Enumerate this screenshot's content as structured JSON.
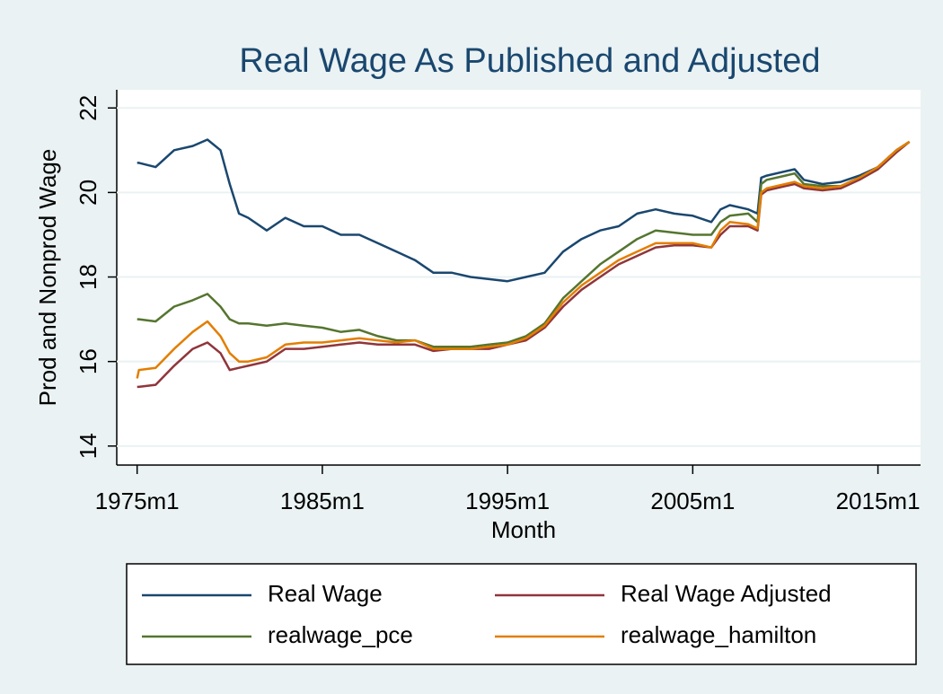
{
  "chart_data": {
    "type": "line",
    "title": "Real Wage As Published and Adjusted",
    "xlabel": "Month",
    "ylabel": "Prod and Nonprod Wage",
    "x": [
      1975,
      1975.1,
      1976,
      1977,
      1978,
      1978.8,
      1979.5,
      1980,
      1980.5,
      1981,
      1982,
      1983,
      1984,
      1985,
      1986,
      1987,
      1988,
      1989,
      1990,
      1991,
      1992,
      1993,
      1994,
      1995,
      1996,
      1997,
      1998,
      1999,
      2000,
      2001,
      2002,
      2003,
      2004,
      2005,
      2006,
      2006.5,
      2007,
      2008,
      2008.5,
      2008.7,
      2009,
      2010,
      2010.5,
      2011,
      2012,
      2013,
      2014,
      2015,
      2016,
      2016.7
    ],
    "series": [
      {
        "name": "Real Wage",
        "color": "#1a476f",
        "values": [
          20.7,
          20.7,
          20.6,
          21.0,
          21.1,
          21.25,
          21.0,
          20.2,
          19.5,
          19.4,
          19.1,
          19.4,
          19.2,
          19.2,
          19.0,
          19.0,
          18.8,
          18.6,
          18.4,
          18.1,
          18.1,
          18.0,
          17.95,
          17.9,
          18.0,
          18.1,
          18.6,
          18.9,
          19.1,
          19.2,
          19.5,
          19.6,
          19.5,
          19.45,
          19.3,
          19.6,
          19.7,
          19.6,
          19.5,
          20.35,
          20.4,
          20.5,
          20.55,
          20.3,
          20.2,
          20.25,
          20.4,
          20.6,
          21.0,
          21.2
        ]
      },
      {
        "name": "Real Wage Adjusted",
        "color": "#90353b",
        "values": [
          15.4,
          15.4,
          15.45,
          15.9,
          16.3,
          16.45,
          16.2,
          15.8,
          15.85,
          15.9,
          16.0,
          16.3,
          16.3,
          16.35,
          16.4,
          16.45,
          16.4,
          16.4,
          16.4,
          16.25,
          16.3,
          16.3,
          16.3,
          16.4,
          16.5,
          16.8,
          17.3,
          17.7,
          18.0,
          18.3,
          18.5,
          18.7,
          18.75,
          18.75,
          18.7,
          19.0,
          19.2,
          19.2,
          19.1,
          19.95,
          20.05,
          20.15,
          20.2,
          20.1,
          20.05,
          20.1,
          20.3,
          20.55,
          20.95,
          21.2
        ]
      },
      {
        "name": "realwage_pce",
        "color": "#55752f",
        "values": [
          17.0,
          17.0,
          16.95,
          17.3,
          17.45,
          17.6,
          17.3,
          17.0,
          16.9,
          16.9,
          16.85,
          16.9,
          16.85,
          16.8,
          16.7,
          16.75,
          16.6,
          16.5,
          16.5,
          16.35,
          16.35,
          16.35,
          16.4,
          16.45,
          16.6,
          16.9,
          17.5,
          17.9,
          18.3,
          18.6,
          18.9,
          19.1,
          19.05,
          19.0,
          19.0,
          19.3,
          19.45,
          19.5,
          19.3,
          20.2,
          20.3,
          20.4,
          20.45,
          20.2,
          20.15,
          20.15,
          20.35,
          20.6,
          21.0,
          21.2
        ]
      },
      {
        "name": "realwage_hamilton",
        "color": "#e37e00",
        "values": [
          15.6,
          15.8,
          15.85,
          16.3,
          16.7,
          16.95,
          16.6,
          16.2,
          16.0,
          16.0,
          16.1,
          16.4,
          16.45,
          16.45,
          16.5,
          16.55,
          16.5,
          16.45,
          16.5,
          16.3,
          16.3,
          16.3,
          16.35,
          16.4,
          16.55,
          16.85,
          17.4,
          17.8,
          18.1,
          18.4,
          18.6,
          18.8,
          18.8,
          18.8,
          18.7,
          19.1,
          19.3,
          19.25,
          19.15,
          20.0,
          20.1,
          20.2,
          20.25,
          20.15,
          20.1,
          20.15,
          20.35,
          20.6,
          21.0,
          21.2
        ]
      }
    ],
    "xlim": [
      1973.9,
      2017.3
    ],
    "xticks": [
      {
        "value": 1975,
        "label": "1975m1"
      },
      {
        "value": 1985,
        "label": "1985m1"
      },
      {
        "value": 1995,
        "label": "1995m1"
      },
      {
        "value": 2005,
        "label": "2005m1"
      },
      {
        "value": 2015,
        "label": "2015m1"
      }
    ],
    "ylim": [
      13.55,
      22.43
    ],
    "yticks": [
      14,
      16,
      18,
      20,
      22
    ],
    "grid": true,
    "legend": "bottom"
  }
}
